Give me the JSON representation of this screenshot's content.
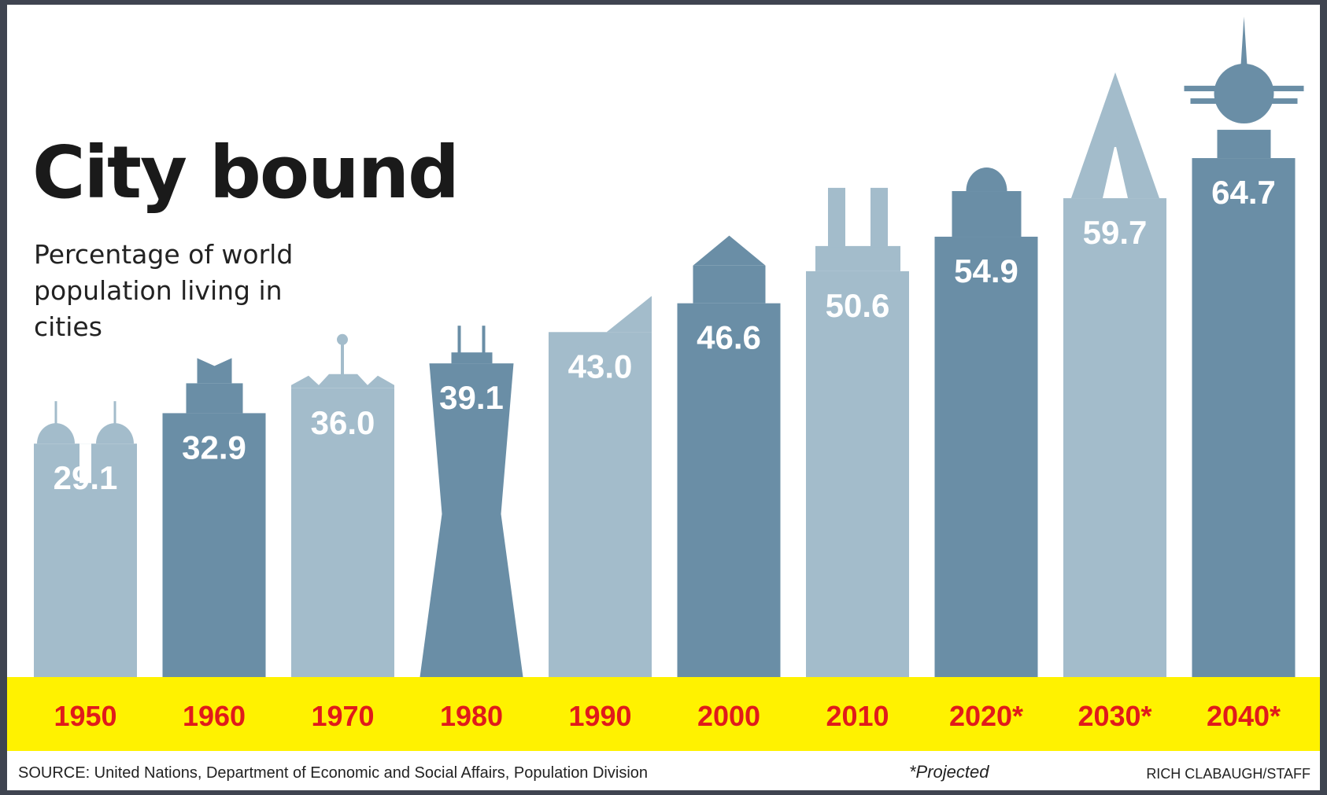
{
  "chart_data": {
    "type": "bar",
    "title": "City bound",
    "subtitle": "Percentage of world population living in cities",
    "categories": [
      "1950",
      "1960",
      "1970",
      "1980",
      "1990",
      "2000",
      "2010",
      "2020*",
      "2030*",
      "2040*"
    ],
    "values": [
      29.1,
      32.9,
      36.0,
      39.1,
      43.0,
      46.6,
      50.6,
      54.9,
      59.7,
      64.7
    ],
    "value_labels": [
      "29.1",
      "32.9",
      "36.0",
      "39.1",
      "43.0",
      "46.6",
      "50.6",
      "54.9",
      "59.7",
      "64.7"
    ],
    "projected": [
      false,
      false,
      false,
      false,
      false,
      false,
      false,
      true,
      true,
      true
    ],
    "ylabel": "",
    "xlabel": "",
    "grid": false,
    "legend": "none"
  },
  "footer": {
    "source": "SOURCE: United Nations, Department of Economic and Social Affairs, Population Division",
    "note": "*Projected",
    "credit": "RICH CLABAUGH/STAFF"
  },
  "colors": {
    "light_bar": "#a3bccb",
    "dark_bar": "#6a8ea6",
    "year_band": "#fff200",
    "year_text": "#e01b1b",
    "value_text": "#ffffff",
    "title_text": "#1a1a1a",
    "frame": "#3f4450"
  }
}
